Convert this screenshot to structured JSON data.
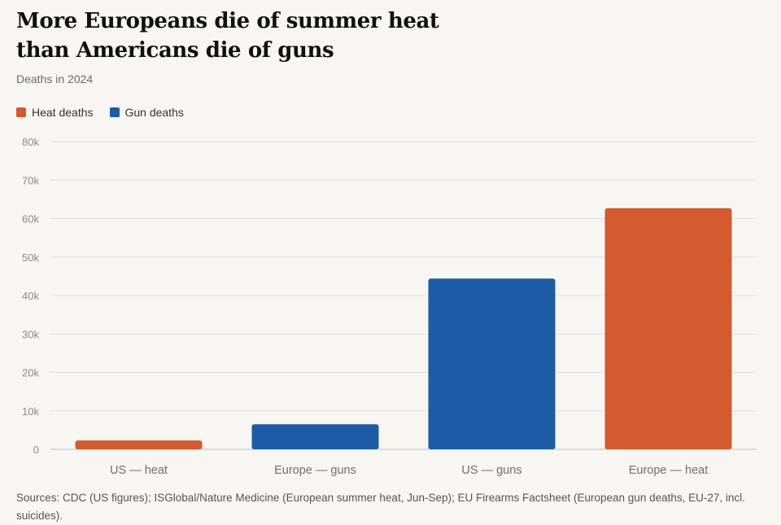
{
  "header": {
    "title_line1": "More Europeans die of summer heat",
    "title_line2": "than Americans die of guns",
    "subtitle": "Deaths in 2024"
  },
  "legend": [
    {
      "label": "Heat deaths",
      "color": "#d45a30"
    },
    {
      "label": "Gun deaths",
      "color": "#1c5ca4"
    }
  ],
  "footer": {
    "source": "Sources: CDC (US figures); ISGlobal/Nature Medicine (European summer heat, Jun-Sep); EU Firearms Factsheet (European gun deaths, EU-27, incl. suicides)."
  },
  "chart_data": {
    "type": "bar",
    "title": "More Europeans die of summer heat than Americans die of guns",
    "subtitle": "Deaths in 2024",
    "categories": [
      "US — heat",
      "Europe — guns",
      "US — guns",
      "Europe — heat"
    ],
    "values": [
      2300,
      6500,
      44400,
      62700
    ],
    "series_of_category": [
      "Heat deaths",
      "Gun deaths",
      "Gun deaths",
      "Heat deaths"
    ],
    "colors": {
      "Heat deaths": "#d45a30",
      "Gun deaths": "#1c5ca4"
    },
    "ylim": [
      0,
      80000
    ],
    "yticks": [
      0,
      10000,
      20000,
      30000,
      40000,
      50000,
      60000,
      70000,
      80000
    ],
    "ytick_labels": [
      "0",
      "10k",
      "20k",
      "30k",
      "40k",
      "50k",
      "60k",
      "70k",
      "80k"
    ],
    "grid": true,
    "legend_position": "top-left"
  }
}
